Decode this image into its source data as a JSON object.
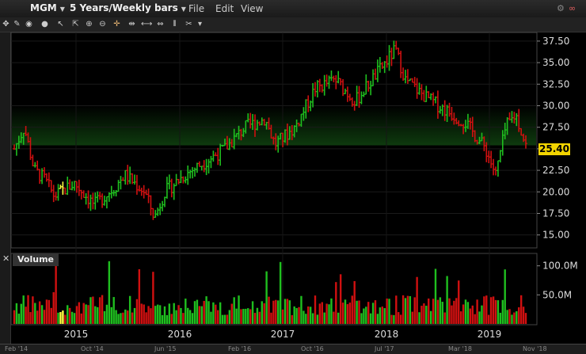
{
  "titlebar": {
    "symbol": "MGM",
    "period": "5 Years/Weekly bars",
    "menus": [
      "File",
      "Edit",
      "View"
    ]
  },
  "toolbar": {
    "tools": [
      "drag-icon",
      "draw-icon",
      "circle-icon",
      "cursor-icon",
      "zoom-in-icon",
      "zoom-out-icon",
      "crosshair-icon",
      "fit-icon",
      "expand-icon",
      "compress-icon",
      "wrench-icon",
      "more-icon"
    ]
  },
  "price_axis": {
    "ticks": [
      "37.50",
      "35.00",
      "32.50",
      "30.00",
      "27.50",
      "25.00",
      "22.50",
      "20.00",
      "17.50",
      "15.00"
    ],
    "last_price": "25.40"
  },
  "volume_panel": {
    "label": "Volume",
    "ticks": [
      "100.0M",
      "50.0M"
    ]
  },
  "time_axis": {
    "years": [
      "2015",
      "2016",
      "2017",
      "2018",
      "2019"
    ]
  },
  "navigator": {
    "labels": [
      "Feb '14",
      "Oct '14",
      "Jun '15",
      "Feb '16",
      "Oct '16",
      "Jul '17",
      "Mar '18",
      "Nov '18"
    ]
  },
  "colors": {
    "up": "#1fbf1f",
    "down": "#d01010",
    "highlight": "#ffff40",
    "band": "#0e3a0e"
  },
  "chart_data": {
    "type": "ohlc",
    "interval": "weekly",
    "ylim": [
      13.5,
      38.5
    ],
    "approx_path": [
      [
        "2014-11",
        25.0
      ],
      [
        "2014-12",
        27.5
      ],
      [
        "2015-01",
        22.5
      ],
      [
        "2015-02",
        21.5
      ],
      [
        "2015-03",
        19.5
      ],
      [
        "2015-05",
        21.0
      ],
      [
        "2015-07",
        18.5
      ],
      [
        "2015-09",
        20.5
      ],
      [
        "2015-10",
        22.0
      ],
      [
        "2015-12",
        20.0
      ],
      [
        "2016-01",
        17.0
      ],
      [
        "2016-02",
        20.0
      ],
      [
        "2016-04",
        22.0
      ],
      [
        "2016-06",
        23.5
      ],
      [
        "2016-08",
        25.0
      ],
      [
        "2016-10",
        27.5
      ],
      [
        "2016-12",
        28.5
      ],
      [
        "2017-01",
        25.5
      ],
      [
        "2017-03",
        27.5
      ],
      [
        "2017-05",
        32.0
      ],
      [
        "2017-07",
        33.0
      ],
      [
        "2017-09",
        30.5
      ],
      [
        "2017-11",
        33.5
      ],
      [
        "2018-01",
        36.5
      ],
      [
        "2018-02",
        33.0
      ],
      [
        "2018-04",
        31.0
      ],
      [
        "2018-06",
        29.5
      ],
      [
        "2018-08",
        28.0
      ],
      [
        "2018-10",
        25.0
      ],
      [
        "2018-11",
        22.0
      ],
      [
        "2018-12",
        27.5
      ],
      [
        "2019-01",
        29.0
      ],
      [
        "2019-02",
        25.4
      ]
    ],
    "volume_ylim": [
      0,
      120000000
    ],
    "band": [
      25.4,
      30.0
    ]
  }
}
